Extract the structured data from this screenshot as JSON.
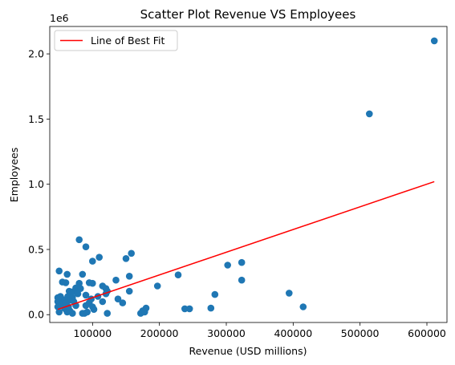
{
  "chart_data": {
    "type": "scatter",
    "title": "Scatter Plot Revenue VS Employees",
    "xlabel": "Revenue (USD millions)",
    "ylabel": "Employees",
    "y_offset_text": "1e6",
    "xlim": [
      36000,
      630000
    ],
    "ylim": [
      -60000,
      2210000
    ],
    "xticks": [
      100000,
      200000,
      300000,
      400000,
      500000,
      600000
    ],
    "xtick_labels": [
      "100000",
      "200000",
      "300000",
      "400000",
      "500000",
      "600000"
    ],
    "yticks": [
      0,
      500000,
      1000000,
      1500000,
      2000000
    ],
    "ytick_labels": [
      "0.0",
      "0.5",
      "1.0",
      "1.5",
      "2.0"
    ],
    "grid": false,
    "legend": {
      "position": "top-left",
      "entries": [
        "Line of Best Fit"
      ]
    },
    "colors": {
      "points": "#1f77b4",
      "fit_line": "#ff0000"
    },
    "fit_line": {
      "name": "Line of Best Fit",
      "x": [
        48000,
        611000
      ],
      "y": [
        40000,
        1020000
      ]
    },
    "points": {
      "x": [
        611000,
        514000,
        80000,
        90000,
        100000,
        110000,
        150000,
        158000,
        50000,
        62000,
        55000,
        60000,
        65000,
        70000,
        75000,
        80000,
        85000,
        90000,
        95000,
        100000,
        115000,
        120000,
        135000,
        155000,
        197000,
        228000,
        238000,
        245000,
        277000,
        283000,
        302000,
        323000,
        323000,
        394000,
        415000,
        48000,
        48000,
        48000,
        50000,
        52000,
        54000,
        55000,
        56000,
        58000,
        60000,
        62000,
        63000,
        65000,
        68000,
        70000,
        72000,
        75000,
        78000,
        82000,
        85000,
        90000,
        95000,
        98000,
        102000,
        108000,
        115000,
        122000,
        122000,
        138000,
        145000,
        155000,
        172000,
        175000,
        178000,
        180000,
        58000,
        60000,
        64000,
        66000,
        70000,
        88000,
        92000,
        100000,
        120000
      ],
      "y": [
        2100000,
        1540000,
        575000,
        520000,
        410000,
        440000,
        430000,
        470000,
        335000,
        310000,
        250000,
        245000,
        180000,
        175000,
        205000,
        240000,
        310000,
        150000,
        245000,
        240000,
        220000,
        200000,
        265000,
        295000,
        220000,
        305000,
        45000,
        45000,
        50000,
        155000,
        380000,
        265000,
        400000,
        165000,
        60000,
        130000,
        100000,
        60000,
        20000,
        140000,
        120000,
        80000,
        100000,
        50000,
        40000,
        20000,
        140000,
        110000,
        160000,
        130000,
        100000,
        70000,
        160000,
        200000,
        10000,
        70000,
        90000,
        120000,
        40000,
        140000,
        100000,
        180000,
        10000,
        120000,
        90000,
        180000,
        10000,
        30000,
        20000,
        50000,
        110000,
        90000,
        60000,
        30000,
        10000,
        10000,
        20000,
        60000,
        160000
      ]
    }
  }
}
